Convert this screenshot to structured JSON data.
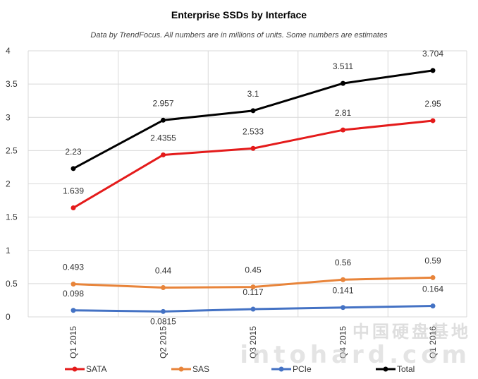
{
  "chart_data": {
    "type": "line",
    "title": "Enterprise SSDs by Interface",
    "subtitle": "Data by TrendFocus. All numbers are in millions of units. Some numbers are estimates",
    "categories": [
      "Q1 2015",
      "Q2 2015",
      "Q3 2015",
      "Q4 2015",
      "Q1 2016"
    ],
    "ylim": [
      0,
      4
    ],
    "yticks": [
      "0",
      "0.5",
      "1",
      "1.5",
      "2",
      "2.5",
      "3",
      "3.5",
      "4"
    ],
    "grid": true,
    "legend_position": "bottom",
    "series": [
      {
        "name": "SATA",
        "color": "#e41b1b",
        "values": [
          1.639,
          2.4355,
          2.533,
          2.81,
          2.95
        ],
        "labels": [
          "1.639",
          "2.4355",
          "2.533",
          "2.81",
          "2.95"
        ]
      },
      {
        "name": "SAS",
        "color": "#e8843a",
        "values": [
          0.493,
          0.44,
          0.45,
          0.56,
          0.59
        ],
        "labels": [
          "0.493",
          "0.44",
          "0.45",
          "0.56",
          "0.59"
        ]
      },
      {
        "name": "PCIe",
        "color": "#4472c4",
        "values": [
          0.098,
          0.0815,
          0.117,
          0.141,
          0.164
        ],
        "labels": [
          "0.098",
          "0.0815",
          "0.117",
          "0.141",
          "0.164"
        ]
      },
      {
        "name": "Total",
        "color": "#000000",
        "values": [
          2.23,
          2.957,
          3.1,
          3.511,
          3.704
        ],
        "labels": [
          "2.23",
          "2.957",
          "3.1",
          "3.511",
          "3.704"
        ]
      }
    ]
  },
  "watermark": {
    "line1": "中国硬盘基地",
    "line2": "intohard.com"
  }
}
